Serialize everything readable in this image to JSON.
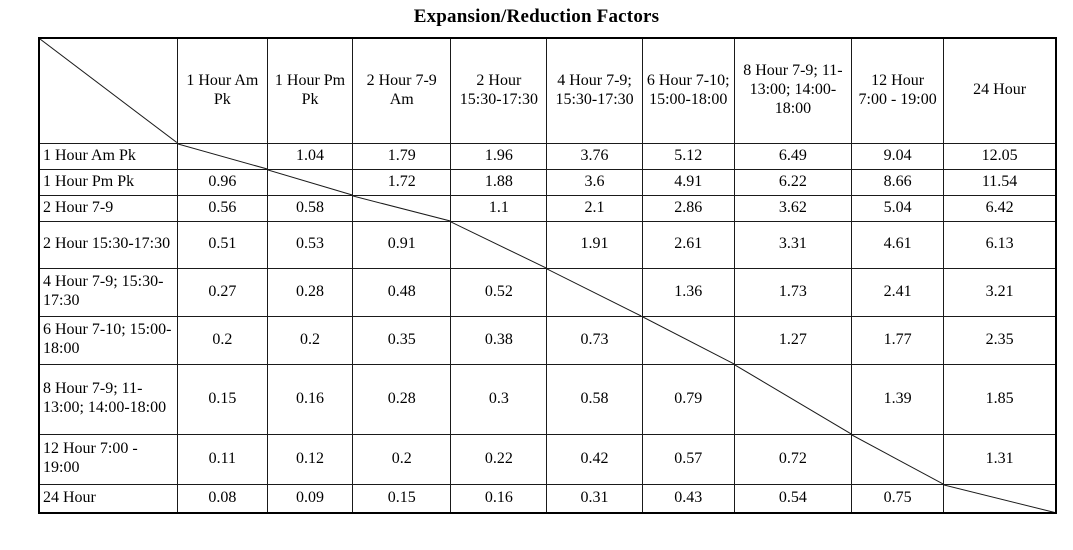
{
  "page": {
    "title": "Expansion/Reduction Factors"
  },
  "table": {
    "corner_label": "",
    "column_headers": [
      "1 Hour Am Pk",
      "1 Hour Pm Pk",
      "2 Hour 7-9 Am",
      "2 Hour 15:30-17:30",
      "4 Hour 7-9; 15:30-17:30",
      "6 Hour 7-10; 15:00-18:00",
      "8 Hour 7-9; 11-13:00; 14:00-18:00",
      "12 Hour 7:00 - 19:00",
      "24 Hour"
    ],
    "rows": [
      {
        "label": "1 Hour Am Pk",
        "values": [
          null,
          "1.04",
          "1.79",
          "1.96",
          "3.76",
          "5.12",
          "6.49",
          "9.04",
          "12.05"
        ]
      },
      {
        "label": "1 Hour Pm Pk",
        "values": [
          "0.96",
          null,
          "1.72",
          "1.88",
          "3.6",
          "4.91",
          "6.22",
          "8.66",
          "11.54"
        ]
      },
      {
        "label": "2 Hour 7-9",
        "values": [
          "0.56",
          "0.58",
          null,
          "1.1",
          "2.1",
          "2.86",
          "3.62",
          "5.04",
          "6.42"
        ]
      },
      {
        "label": "2 Hour 15:30-17:30",
        "values": [
          "0.51",
          "0.53",
          "0.91",
          null,
          "1.91",
          "2.61",
          "3.31",
          "4.61",
          "6.13"
        ]
      },
      {
        "label": "4 Hour 7-9; 15:30-17:30",
        "values": [
          "0.27",
          "0.28",
          "0.48",
          "0.52",
          null,
          "1.36",
          "1.73",
          "2.41",
          "3.21"
        ]
      },
      {
        "label": "6 Hour 7-10; 15:00-18:00",
        "values": [
          "0.2",
          "0.2",
          "0.35",
          "0.38",
          "0.73",
          null,
          "1.27",
          "1.77",
          "2.35"
        ]
      },
      {
        "label": "8 Hour 7-9; 11-13:00; 14:00-18:00",
        "values": [
          "0.15",
          "0.16",
          "0.28",
          "0.3",
          "0.58",
          "0.79",
          null,
          "1.39",
          "1.85"
        ]
      },
      {
        "label": "12 Hour 7:00 - 19:00",
        "values": [
          "0.11",
          "0.12",
          "0.2",
          "0.22",
          "0.42",
          "0.57",
          "0.72",
          null,
          "1.31"
        ]
      },
      {
        "label": "24 Hour",
        "values": [
          "0.08",
          "0.09",
          "0.15",
          "0.16",
          "0.31",
          "0.43",
          "0.54",
          "0.75",
          null
        ]
      }
    ]
  },
  "chart_data": {
    "type": "table",
    "title": "Expansion/Reduction Factors",
    "columns": [
      "",
      "1 Hour Am Pk",
      "1 Hour Pm Pk",
      "2 Hour 7-9 Am",
      "2 Hour 15:30-17:30",
      "4 Hour 7-9; 15:30-17:30",
      "6 Hour 7-10; 15:00-18:00",
      "8 Hour 7-9; 11-13:00; 14:00-18:00",
      "12 Hour 7:00 - 19:00",
      "24 Hour"
    ],
    "rows": [
      [
        "1 Hour Am Pk",
        null,
        1.04,
        1.79,
        1.96,
        3.76,
        5.12,
        6.49,
        9.04,
        12.05
      ],
      [
        "1 Hour Pm Pk",
        0.96,
        null,
        1.72,
        1.88,
        3.6,
        4.91,
        6.22,
        8.66,
        11.54
      ],
      [
        "2 Hour 7-9",
        0.56,
        0.58,
        null,
        1.1,
        2.1,
        2.86,
        3.62,
        5.04,
        6.42
      ],
      [
        "2 Hour 15:30-17:30",
        0.51,
        0.53,
        0.91,
        null,
        1.91,
        2.61,
        3.31,
        4.61,
        6.13
      ],
      [
        "4 Hour 7-9; 15:30-17:30",
        0.27,
        0.28,
        0.48,
        0.52,
        null,
        1.36,
        1.73,
        2.41,
        3.21
      ],
      [
        "6 Hour 7-10; 15:00-18:00",
        0.2,
        0.2,
        0.35,
        0.38,
        0.73,
        null,
        1.27,
        1.77,
        2.35
      ],
      [
        "8 Hour 7-9; 11-13:00; 14:00-18:00",
        0.15,
        0.16,
        0.28,
        0.3,
        0.58,
        0.79,
        null,
        1.39,
        1.85
      ],
      [
        "12 Hour 7:00 - 19:00",
        0.11,
        0.12,
        0.2,
        0.22,
        0.42,
        0.57,
        0.72,
        null,
        1.31
      ],
      [
        "24 Hour",
        0.08,
        0.09,
        0.15,
        0.16,
        0.31,
        0.43,
        0.54,
        0.75,
        null
      ]
    ],
    "notes": "Blank diagonal cells (row period == column period) are crossed by a continuous diagonal line from table top-left to bottom-right."
  }
}
